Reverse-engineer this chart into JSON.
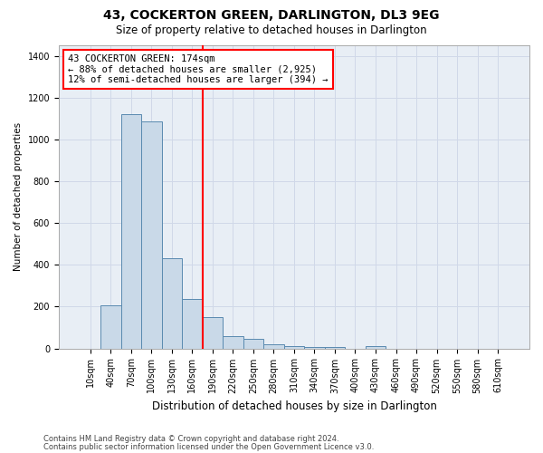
{
  "title": "43, COCKERTON GREEN, DARLINGTON, DL3 9EG",
  "subtitle": "Size of property relative to detached houses in Darlington",
  "xlabel": "Distribution of detached houses by size in Darlington",
  "ylabel": "Number of detached properties",
  "footnote1": "Contains HM Land Registry data © Crown copyright and database right 2024.",
  "footnote2": "Contains public sector information licensed under the Open Government Licence v3.0.",
  "bar_labels": [
    "10sqm",
    "40sqm",
    "70sqm",
    "100sqm",
    "130sqm",
    "160sqm",
    "190sqm",
    "220sqm",
    "250sqm",
    "280sqm",
    "310sqm",
    "340sqm",
    "370sqm",
    "400sqm",
    "430sqm",
    "460sqm",
    "490sqm",
    "520sqm",
    "550sqm",
    "580sqm",
    "610sqm"
  ],
  "bar_values": [
    0,
    205,
    1120,
    1085,
    430,
    235,
    150,
    60,
    45,
    20,
    12,
    5,
    5,
    0,
    10,
    0,
    0,
    0,
    0,
    0,
    0
  ],
  "bar_color": "#c9d9e8",
  "bar_edge_color": "#5a8ab0",
  "ylim": [
    0,
    1450
  ],
  "yticks": [
    0,
    200,
    400,
    600,
    800,
    1000,
    1200,
    1400
  ],
  "annotation_line1": "43 COCKERTON GREEN: 174sqm",
  "annotation_line2": "← 88% of detached houses are smaller (2,925)",
  "annotation_line3": "12% of semi-detached houses are larger (394) →",
  "grid_color": "#d0d8e8",
  "background_color": "#e8eef5",
  "title_fontsize": 10,
  "subtitle_fontsize": 8.5,
  "xlabel_fontsize": 8.5,
  "ylabel_fontsize": 7.5,
  "tick_fontsize": 7,
  "footnote_fontsize": 6,
  "annotation_fontsize": 7.5
}
